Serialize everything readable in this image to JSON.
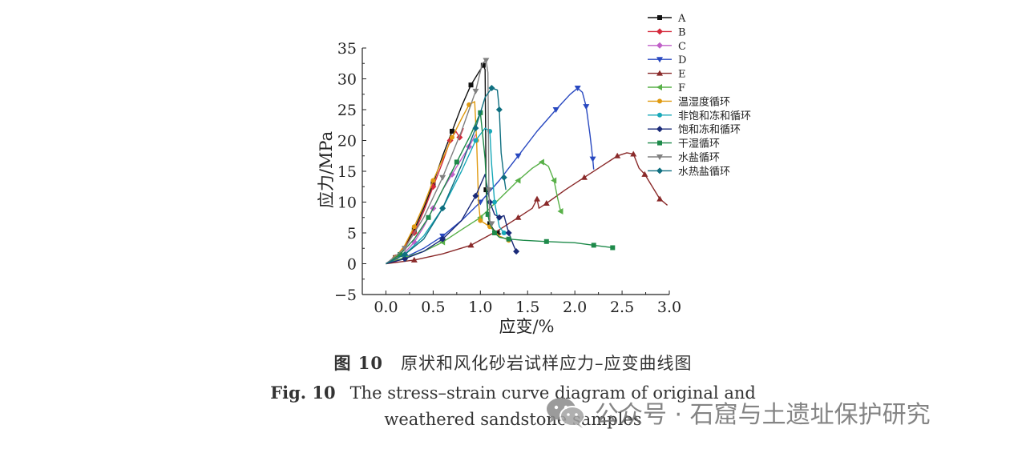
{
  "figure": {
    "caption_cn_label": "图 10",
    "caption_cn_text": "原状和风化砂岩试样应力–应变曲线图",
    "caption_en_label": "Fig. 10",
    "caption_en_line1": "The stress–strain curve diagram of original and",
    "caption_en_line2": "weathered sandstone samples"
  },
  "watermark": {
    "icon": "wechat-icon",
    "text": "公众号 · 石窟与土遗址保护研究"
  },
  "chart_data": {
    "type": "line",
    "xlabel": "应变/%",
    "ylabel": "应力/MPa",
    "xlim": [
      -0.25,
      3.0
    ],
    "ylim": [
      -5,
      35
    ],
    "xticks": [
      0.0,
      0.5,
      1.0,
      1.5,
      2.0,
      2.5,
      3.0
    ],
    "xtick_labels": [
      "0.0",
      "0.5",
      "1.0",
      "1.5",
      "2.0",
      "2.5",
      "3.0"
    ],
    "yticks": [
      -5,
      0,
      5,
      10,
      15,
      20,
      25,
      30,
      35
    ],
    "ytick_labels": [
      "−5",
      "0",
      "5",
      "10",
      "15",
      "20",
      "25",
      "30",
      "35"
    ],
    "grid": false,
    "legend_position": "top-right",
    "series": [
      {
        "name": "A",
        "color": "#111111",
        "marker": "square",
        "x": [
          0,
          0.1,
          0.2,
          0.3,
          0.4,
          0.5,
          0.6,
          0.7,
          0.8,
          0.9,
          0.98,
          1.03,
          1.05,
          1.06,
          1.08,
          1.1,
          1.14,
          1.18,
          1.22
        ],
        "y": [
          0,
          1.0,
          2.8,
          5.5,
          9.0,
          13.0,
          17.5,
          21.5,
          25.5,
          29.0,
          31.0,
          32.2,
          31.5,
          12.0,
          8.0,
          6.5,
          5.5,
          5.0,
          4.8
        ]
      },
      {
        "name": "B",
        "color": "#d42a3c",
        "marker": "diamond",
        "x": [
          0,
          0.1,
          0.2,
          0.3,
          0.4,
          0.5,
          0.6,
          0.68,
          0.74,
          0.78,
          0.82
        ],
        "y": [
          0,
          1.0,
          2.7,
          5.0,
          8.5,
          12.5,
          16.5,
          20.0,
          21.5,
          20.5,
          22.0
        ]
      },
      {
        "name": "C",
        "color": "#c060c8",
        "marker": "diamond",
        "x": [
          0,
          0.1,
          0.2,
          0.3,
          0.4,
          0.5,
          0.6,
          0.7,
          0.8,
          0.88,
          0.95
        ],
        "y": [
          0,
          0.6,
          1.8,
          3.5,
          6.0,
          9.0,
          12.0,
          14.5,
          17.0,
          19.0,
          21.0
        ]
      },
      {
        "name": "D",
        "color": "#2848c0",
        "marker": "triangle-down",
        "x": [
          0,
          0.2,
          0.4,
          0.6,
          0.8,
          1.0,
          1.2,
          1.4,
          1.6,
          1.8,
          1.95,
          2.03,
          2.08,
          2.12,
          2.16,
          2.19,
          2.2
        ],
        "y": [
          0,
          1.0,
          2.5,
          4.5,
          7.0,
          10.0,
          13.5,
          17.5,
          21.5,
          25.0,
          27.5,
          28.5,
          27.8,
          25.5,
          21.0,
          17.0,
          15.3
        ]
      },
      {
        "name": "E",
        "color": "#8a2a2a",
        "marker": "triangle-up",
        "x": [
          0,
          0.3,
          0.6,
          0.9,
          1.2,
          1.4,
          1.55,
          1.6,
          1.62,
          1.7,
          1.9,
          2.1,
          2.3,
          2.45,
          2.55,
          2.62,
          2.68,
          2.74,
          2.82,
          2.9,
          2.98
        ],
        "y": [
          0,
          0.6,
          1.6,
          3.0,
          5.5,
          7.5,
          9.0,
          10.5,
          9.0,
          9.8,
          12.0,
          14.0,
          16.0,
          17.5,
          18.0,
          17.8,
          15.5,
          14.5,
          12.5,
          10.5,
          9.5
        ]
      },
      {
        "name": "F",
        "color": "#58b048",
        "marker": "triangle-left",
        "x": [
          0,
          0.2,
          0.4,
          0.6,
          0.8,
          1.0,
          1.2,
          1.4,
          1.55,
          1.65,
          1.72,
          1.78,
          1.82,
          1.85
        ],
        "y": [
          0,
          1.0,
          2.0,
          3.5,
          5.5,
          7.5,
          10.5,
          13.5,
          15.5,
          16.5,
          15.8,
          13.5,
          10.5,
          8.5
        ]
      },
      {
        "name": "温湿度循环",
        "color": "#e09a10",
        "marker": "circle",
        "x": [
          0,
          0.1,
          0.2,
          0.3,
          0.4,
          0.5,
          0.6,
          0.7,
          0.8,
          0.88,
          0.94,
          0.96,
          0.98,
          1.0,
          1.05,
          1.1,
          1.2,
          1.3
        ],
        "y": [
          0,
          1.0,
          3.0,
          6.0,
          9.5,
          13.5,
          17.0,
          20.5,
          23.5,
          25.8,
          26.3,
          20.0,
          10.0,
          7.0,
          6.5,
          6.0,
          4.5,
          3.8
        ]
      },
      {
        "name": "非饱和冻和循环",
        "color": "#18a8b8",
        "marker": "circle",
        "x": [
          0,
          0.2,
          0.4,
          0.6,
          0.8,
          0.95,
          1.05,
          1.1,
          1.12,
          1.15,
          1.2,
          1.25
        ],
        "y": [
          0,
          1.5,
          4.5,
          9.0,
          15.0,
          20.0,
          22.0,
          21.5,
          16.0,
          10.0,
          6.0,
          5.0
        ]
      },
      {
        "name": "饱和冻和循环",
        "color": "#1a2a78",
        "marker": "diamond",
        "x": [
          0,
          0.2,
          0.4,
          0.6,
          0.8,
          0.95,
          1.05,
          1.1,
          1.15,
          1.2,
          1.25,
          1.3,
          1.35,
          1.38
        ],
        "y": [
          0,
          0.8,
          2.0,
          4.0,
          7.0,
          11.0,
          14.5,
          10.0,
          8.0,
          7.5,
          7.8,
          5.0,
          3.0,
          2.0
        ]
      },
      {
        "name": "干湿循环",
        "color": "#1e8a4a",
        "marker": "square",
        "x": [
          0,
          0.15,
          0.3,
          0.45,
          0.6,
          0.75,
          0.9,
          1.0,
          1.05,
          1.08,
          1.1,
          1.15,
          1.2,
          1.3,
          1.45,
          1.7,
          2.0,
          2.2,
          2.35,
          2.4
        ],
        "y": [
          0,
          1.5,
          4.0,
          7.5,
          12.0,
          16.5,
          21.0,
          24.5,
          17.0,
          8.0,
          6.5,
          5.0,
          4.3,
          4.0,
          3.8,
          3.6,
          3.4,
          3.0,
          2.7,
          2.6
        ]
      },
      {
        "name": "水盐循环",
        "color": "#808080",
        "marker": "triangle-down",
        "x": [
          0,
          0.2,
          0.4,
          0.6,
          0.8,
          0.95,
          1.02,
          1.06,
          1.08,
          1.09,
          1.1,
          1.12
        ],
        "y": [
          0,
          2.5,
          7.5,
          14.0,
          21.5,
          28.0,
          32.5,
          33.0,
          31.0,
          12.0,
          7.0,
          6.5
        ]
      },
      {
        "name": "水热盐循环",
        "color": "#0f6f80",
        "marker": "diamond",
        "x": [
          0,
          0.2,
          0.4,
          0.6,
          0.8,
          0.95,
          1.05,
          1.12,
          1.18,
          1.2,
          1.22,
          1.25,
          1.27
        ],
        "y": [
          0,
          1.5,
          4.0,
          9.0,
          16.0,
          22.0,
          27.0,
          28.5,
          28.2,
          25.0,
          18.0,
          14.0,
          12.0
        ]
      }
    ]
  }
}
